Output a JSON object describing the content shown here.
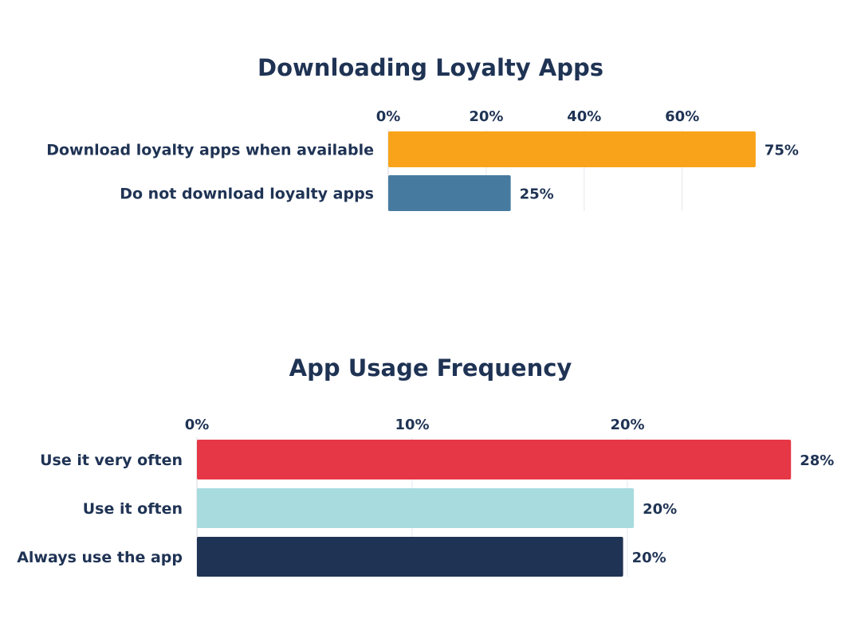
{
  "chart_data": [
    {
      "type": "bar",
      "orientation": "horizontal",
      "title": "Downloading Loyalty Apps",
      "xlabel": "",
      "ylabel": "",
      "categories": [
        "Download loyalty apps when available",
        "Do not download loyalty apps"
      ],
      "values": [
        75,
        25
      ],
      "value_labels": [
        "75%",
        "25%"
      ],
      "colors": [
        "#f9a31a",
        "#467b9f"
      ],
      "ticks": [
        0,
        20,
        40,
        60
      ],
      "tick_labels": [
        "0%",
        "20%",
        "40%",
        "60%"
      ],
      "xlim": [
        0,
        80
      ],
      "grid": true,
      "axis_position": "top"
    },
    {
      "type": "bar",
      "orientation": "horizontal",
      "title": "App Usage Frequency",
      "xlabel": "",
      "ylabel": "",
      "categories": [
        "Use it very often",
        "Use it often",
        "Always use the app"
      ],
      "values": [
        27.6,
        20.3,
        19.8
      ],
      "value_labels": [
        "28%",
        "20%",
        "20%"
      ],
      "colors": [
        "#e63746",
        "#a8dbdd",
        "#1f3354"
      ],
      "ticks": [
        0,
        10,
        20
      ],
      "tick_labels": [
        "0%",
        "10%",
        "20%"
      ],
      "xlim": [
        0,
        30
      ],
      "grid": true,
      "axis_position": "top"
    }
  ]
}
